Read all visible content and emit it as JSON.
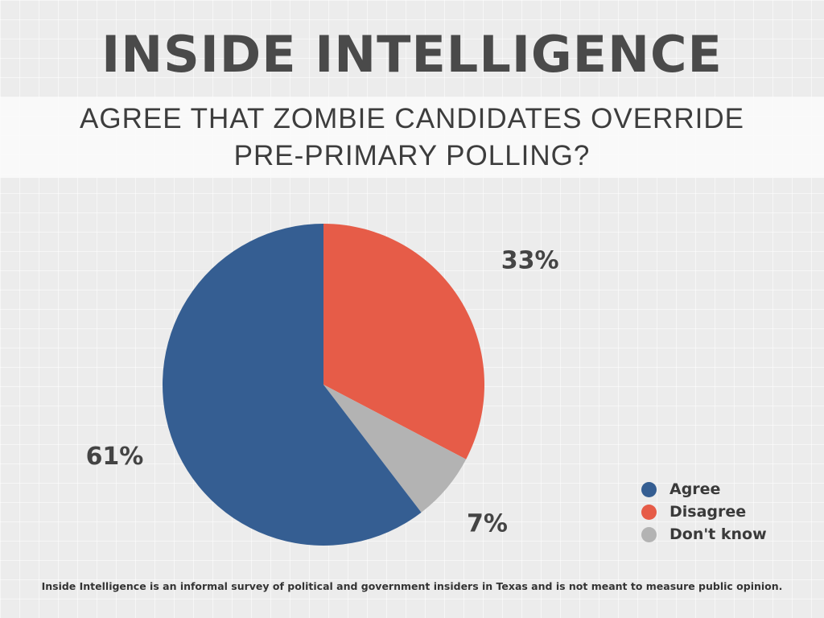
{
  "header": {
    "brand": "INSIDE INTELLIGENCE",
    "question_line1": "AGREE THAT ZOMBIE CANDIDATES OVERRIDE",
    "question_line2": "PRE-PRIMARY POLLING?"
  },
  "chart_data": {
    "type": "pie",
    "title": "AGREE THAT ZOMBIE CANDIDATES OVERRIDE PRE-PRIMARY POLLING?",
    "categories": [
      "Agree",
      "Disagree",
      "Don't know"
    ],
    "values": [
      61,
      33,
      7
    ],
    "labels": [
      "61%",
      "33%",
      "7%"
    ],
    "colors": [
      "#355e92",
      "#e65c48",
      "#b3b3b3"
    ],
    "legend_placement": "bottom-right",
    "start": "12 o'clock",
    "direction": "clockwise, Disagree first"
  },
  "legend": {
    "items": [
      {
        "label": "Agree",
        "color": "#355e92"
      },
      {
        "label": "Disagree",
        "color": "#e65c48"
      },
      {
        "label": "Don't know",
        "color": "#b3b3b3"
      }
    ]
  },
  "footer": {
    "note": "Inside Intelligence is an informal survey of political and government insiders in Texas and is not meant to measure public opinion."
  }
}
